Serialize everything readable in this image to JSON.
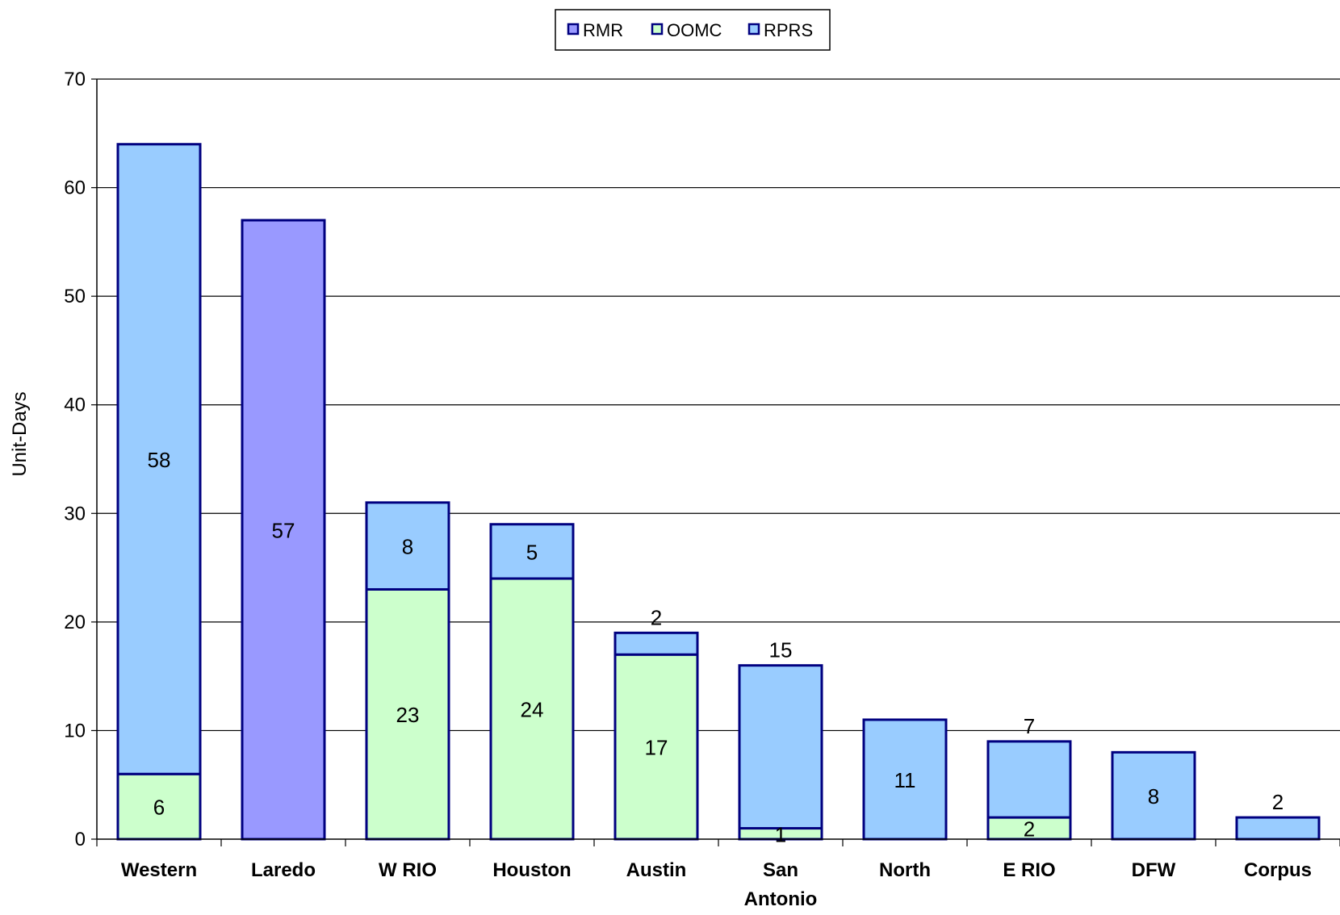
{
  "chart_data": {
    "type": "bar",
    "stacked": true,
    "categories": [
      "Western",
      "Laredo",
      "W RIO",
      "Houston",
      "Austin",
      "San Antonio",
      "North",
      "E RIO",
      "DFW",
      "Corpus"
    ],
    "category_lines": [
      [
        "Western"
      ],
      [
        "Laredo"
      ],
      [
        "W RIO"
      ],
      [
        "Houston"
      ],
      [
        "Austin"
      ],
      [
        "San",
        "Antonio"
      ],
      [
        "North"
      ],
      [
        "E RIO"
      ],
      [
        "DFW"
      ],
      [
        "Corpus"
      ]
    ],
    "series": [
      {
        "name": "RMR",
        "color": "#9999FF",
        "values": [
          0,
          57,
          0,
          0,
          0,
          0,
          0,
          0,
          0,
          0
        ]
      },
      {
        "name": "OOMC",
        "color": "#CCFFCC",
        "values": [
          6,
          0,
          23,
          24,
          17,
          1,
          0,
          2,
          0,
          0
        ]
      },
      {
        "name": "RPRS",
        "color": "#99CCFF",
        "values": [
          58,
          0,
          8,
          5,
          2,
          15,
          11,
          7,
          8,
          2
        ]
      }
    ],
    "labels_above_bar": {
      "Austin": "RPRS",
      "San Antonio": "RPRS",
      "E RIO": "RPRS",
      "Corpus": "RPRS"
    },
    "ylabel": "Unit-Days",
    "xlabel": "",
    "ylim": [
      0,
      70
    ],
    "yticks": [
      0,
      10,
      20,
      30,
      40,
      50,
      60,
      70
    ],
    "grid": true,
    "legend_position": "top-center",
    "outline_color": "#000080"
  }
}
